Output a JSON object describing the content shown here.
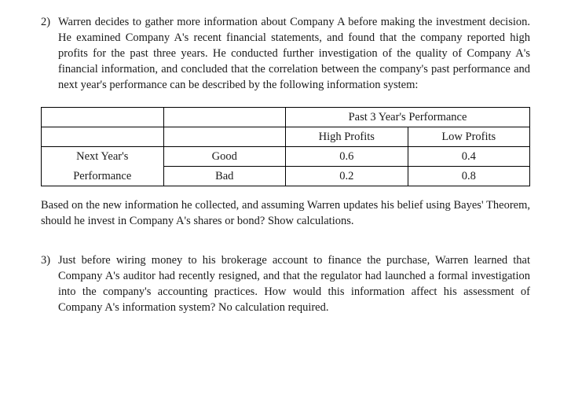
{
  "q2": {
    "number": "2)",
    "text": "Warren decides to gather more information about Company A before making the investment decision. He examined Company A's recent financial statements, and found that the company reported high profits for the past three years. He conducted further investigation of the quality of Company A's financial information, and concluded that the correlation between the company's past performance and next year's performance can be described by the following information system:"
  },
  "table": {
    "header_span": "Past 3 Year's Performance",
    "col1": "High Profits",
    "col2": "Low Profits",
    "rowlabel_span": "Next Year's",
    "rowlabel_span2": "Performance",
    "row1label": "Good",
    "row2label": "Bad",
    "r1c1": "0.6",
    "r1c2": "0.4",
    "r2c1": "0.2",
    "r2c2": "0.8"
  },
  "q2after": "Based on the new information he collected, and assuming Warren updates his belief using Bayes' Theorem, should he invest in Company A's shares or bond? Show calculations.",
  "q3": {
    "number": "3)",
    "text": "Just before wiring money to his brokerage account to finance the purchase, Warren learned that Company A's auditor had recently resigned, and that the regulator had launched a formal investigation into the company's accounting practices. How would this information affect his assessment of Company A's information system? No calculation required."
  },
  "colors": {
    "text": "#1a1a1a",
    "border": "#000000",
    "background": "#ffffff"
  }
}
